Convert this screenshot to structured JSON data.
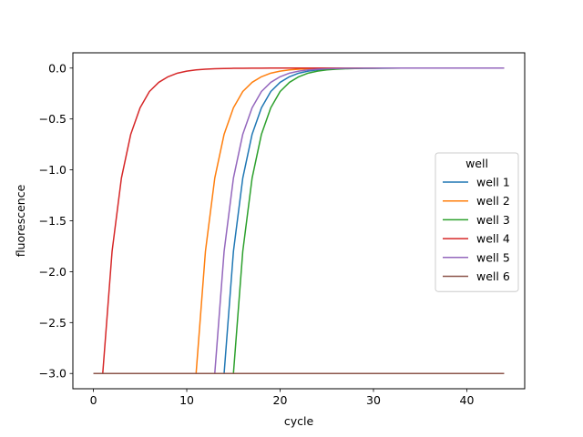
{
  "chart_data": {
    "type": "line",
    "xlabel": "cycle",
    "ylabel": "fluorescence",
    "xlim": [
      -2.2,
      46.2
    ],
    "ylim": [
      -3.15,
      0.15
    ],
    "xticks": [
      0,
      10,
      20,
      30,
      40
    ],
    "yticks": [
      0.0,
      -0.5,
      -1.0,
      -1.5,
      -2.0,
      -2.5,
      -3.0
    ],
    "ytick_labels": [
      "0.0",
      "−0.5",
      "−1.0",
      "−1.5",
      "−2.0",
      "−2.5",
      "−3.0"
    ],
    "grid": false,
    "legend": {
      "title": "well",
      "placement": "center-right"
    },
    "x": [
      0,
      1,
      2,
      3,
      4,
      5,
      6,
      7,
      8,
      9,
      10,
      11,
      12,
      13,
      14,
      15,
      16,
      17,
      18,
      19,
      20,
      21,
      22,
      23,
      24,
      25,
      26,
      27,
      28,
      29,
      30,
      31,
      32,
      33,
      34,
      35,
      36,
      37,
      38,
      39,
      40,
      41,
      42,
      43,
      44
    ],
    "series": [
      {
        "name": "well 1",
        "color": "#1f77b4",
        "onset": 14
      },
      {
        "name": "well 2",
        "color": "#ff7f0e",
        "onset": 11
      },
      {
        "name": "well 3",
        "color": "#2ca02c",
        "onset": 15
      },
      {
        "name": "well 4",
        "color": "#d62728",
        "onset": 1
      },
      {
        "name": "well 5",
        "color": "#9467bd",
        "onset": 13
      },
      {
        "name": "well 6",
        "color": "#8c564b",
        "onset": null
      }
    ],
    "curve_shape": {
      "baseline": -3.0,
      "values_after_onset": [
        -3.0,
        -1.8,
        -1.08,
        -0.65,
        -0.39,
        -0.23,
        -0.14,
        -0.085,
        -0.05,
        -0.03,
        -0.018,
        -0.011,
        -0.007,
        -0.004,
        -0.0025,
        -0.0015,
        -0.001,
        -0.0006,
        -0.0003,
        -0.0002,
        -0.0001,
        0.0
      ]
    }
  }
}
